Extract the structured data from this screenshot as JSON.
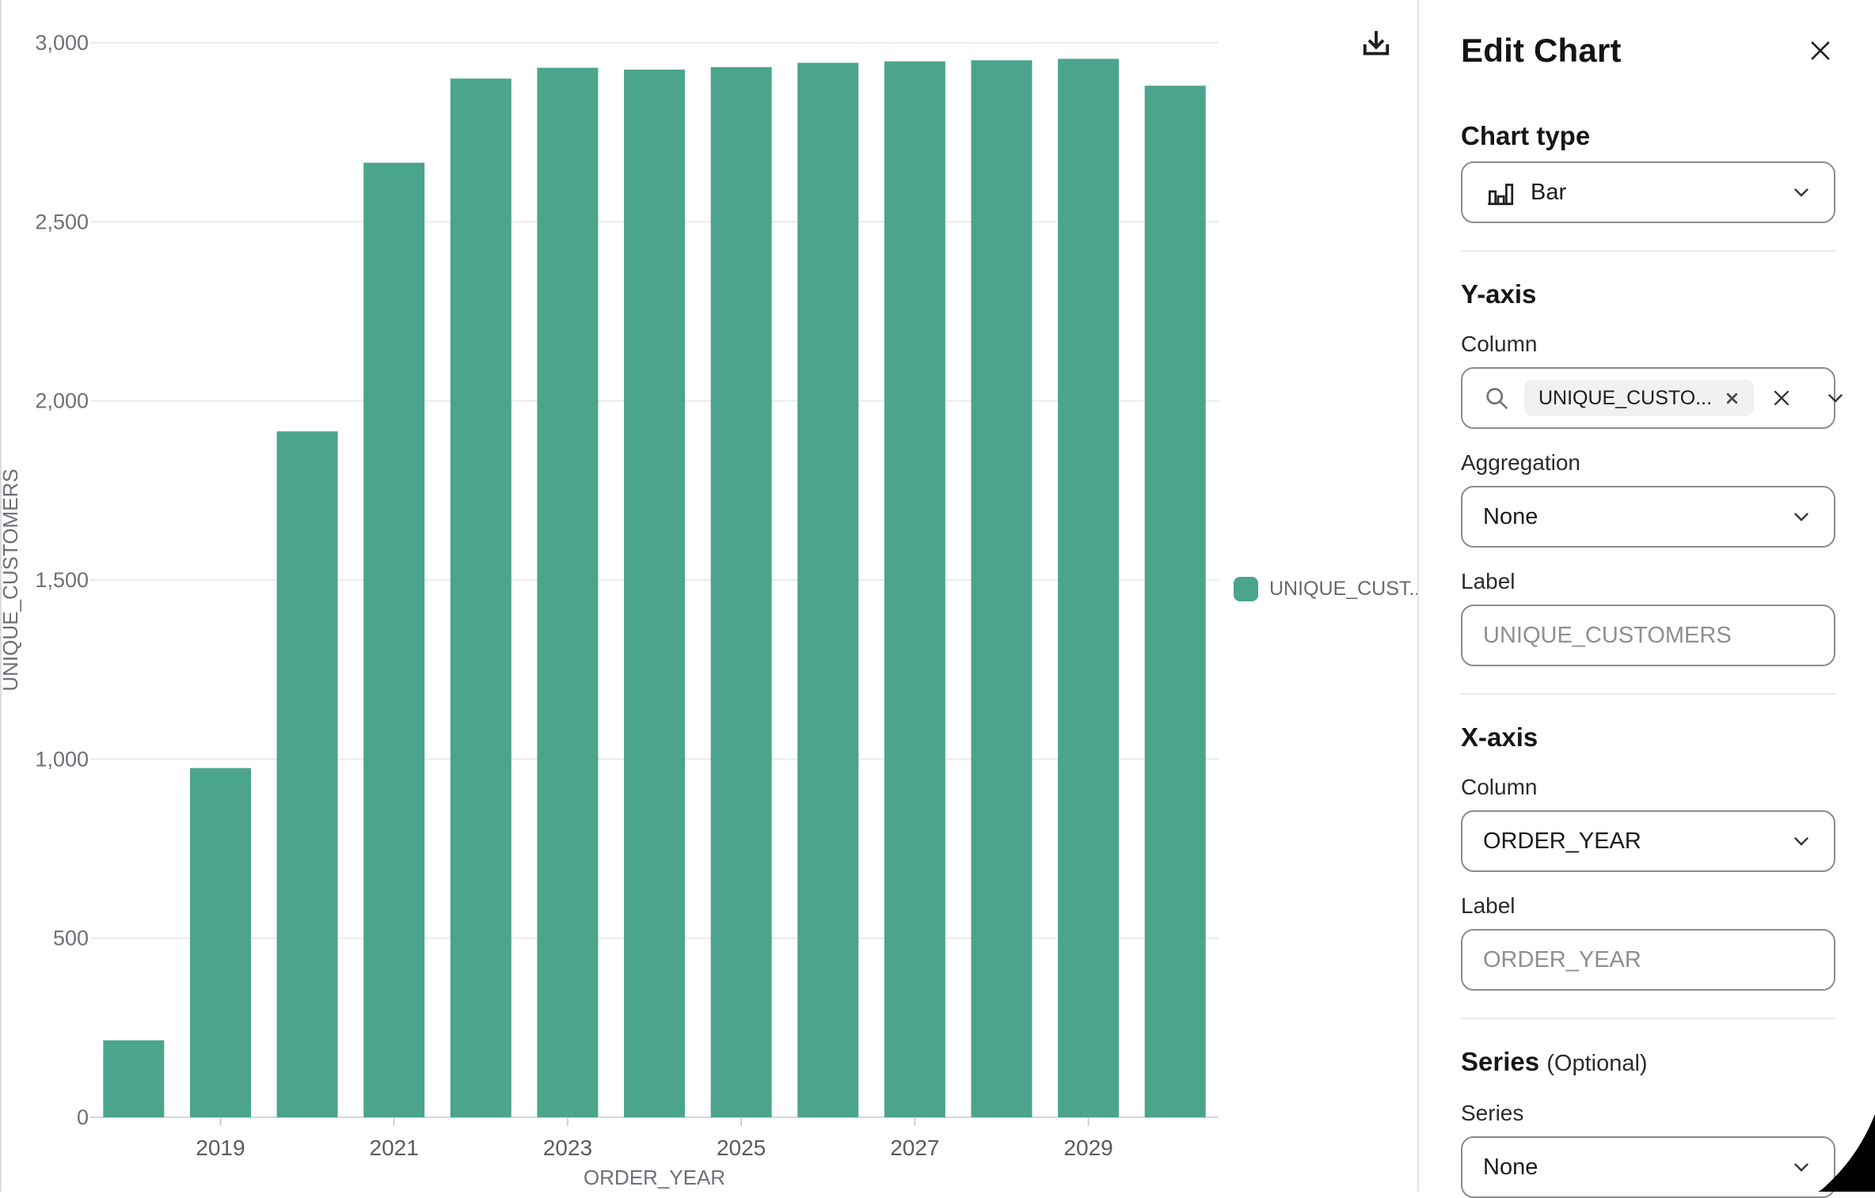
{
  "chart_data": {
    "type": "bar",
    "categories": [
      2018,
      2019,
      2020,
      2021,
      2022,
      2023,
      2024,
      2025,
      2026,
      2027,
      2028,
      2029,
      2030
    ],
    "values": [
      215,
      975,
      1915,
      2665,
      2900,
      2930,
      2925,
      2932,
      2944,
      2948,
      2951,
      2955,
      2880
    ],
    "title": "",
    "xlabel": "ORDER_YEAR",
    "ylabel": "UNIQUE_CUSTOMERS",
    "ylim": [
      0,
      3000
    ],
    "yticks": [
      0,
      500,
      1000,
      1500,
      2000,
      2500,
      3000
    ],
    "ytick_labels": [
      "0",
      "500",
      "1,000",
      "1,500",
      "2,000",
      "2,500",
      "3,000"
    ],
    "xticks": [
      {
        "label": "2019",
        "category_index": 1
      },
      {
        "label": "2021",
        "category_index": 3
      },
      {
        "label": "2023",
        "category_index": 5
      },
      {
        "label": "2025",
        "category_index": 7
      },
      {
        "label": "2027",
        "category_index": 9
      },
      {
        "label": "2029",
        "category_index": 11
      }
    ],
    "grid": "horizontal gridlines on",
    "legend_position": "right",
    "legend_label": "UNIQUE_CUST...",
    "bar_color": "#4BA48C",
    "axis_text_color": "#6e7079",
    "gridline_color": "#ebebeb",
    "axis_line_color": "#d7d7d7"
  },
  "chart_toolbar": {
    "download_icon": "download"
  },
  "edit_panel": {
    "title": "Edit Chart",
    "close_icon": "close",
    "chart_type": {
      "heading": "Chart type",
      "selected": "Bar",
      "type_icon": "bar-chart",
      "chevron_icon": "chevron-down"
    },
    "y_axis": {
      "heading": "Y-axis",
      "column_label": "Column",
      "search_icon": "search",
      "selected_chip": "UNIQUE_CUSTO...",
      "chip_remove_icon": "close",
      "clear_icon": "close",
      "chevron_icon": "chevron-down",
      "aggregation_label": "Aggregation",
      "aggregation_value": "None",
      "label_label": "Label",
      "label_placeholder": "UNIQUE_CUSTOMERS"
    },
    "x_axis": {
      "heading": "X-axis",
      "column_label": "Column",
      "column_value": "ORDER_YEAR",
      "chevron_icon": "chevron-down",
      "label_label": "Label",
      "label_placeholder": "ORDER_YEAR"
    },
    "series": {
      "heading": "Series",
      "optional": "(Optional)",
      "series_label": "Series",
      "series_value": "None",
      "chevron_icon": "chevron-down"
    }
  }
}
